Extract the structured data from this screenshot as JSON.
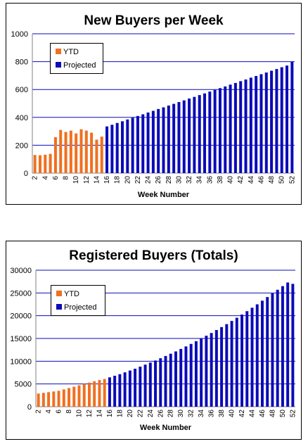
{
  "colors": {
    "ytd": "#F07020",
    "projected": "#0B0BB8",
    "gridline": "#0B0BB8",
    "axis": "#808080"
  },
  "chart_data": [
    {
      "type": "bar",
      "title": "New Buyers per Week",
      "xlabel": "Week Number",
      "ylabel": "",
      "ylim": [
        0,
        1000
      ],
      "yticks": [
        0,
        200,
        400,
        600,
        800,
        1000
      ],
      "categories": [
        2,
        3,
        4,
        5,
        6,
        7,
        8,
        9,
        10,
        11,
        12,
        13,
        14,
        15,
        16,
        17,
        18,
        19,
        20,
        21,
        22,
        23,
        24,
        25,
        26,
        27,
        28,
        29,
        30,
        31,
        32,
        33,
        34,
        35,
        36,
        37,
        38,
        39,
        40,
        41,
        42,
        43,
        44,
        45,
        46,
        47,
        48,
        49,
        50,
        51,
        52
      ],
      "x_tick_labels": [
        2,
        4,
        6,
        8,
        10,
        12,
        14,
        16,
        18,
        20,
        22,
        24,
        26,
        28,
        30,
        32,
        34,
        36,
        38,
        40,
        42,
        44,
        46,
        48,
        50,
        52
      ],
      "legend_position": "top-left",
      "grid": true,
      "series": [
        {
          "name": "YTD",
          "color": "#F07020",
          "x": [
            2,
            3,
            4,
            5,
            6,
            7,
            8,
            9,
            10,
            11,
            12,
            13,
            14,
            15
          ],
          "values": [
            130,
            128,
            132,
            138,
            258,
            310,
            295,
            305,
            285,
            315,
            305,
            290,
            240,
            262
          ]
        },
        {
          "name": "Projected",
          "color": "#0B0BB8",
          "x": [
            16,
            17,
            18,
            19,
            20,
            21,
            22,
            23,
            24,
            25,
            26,
            27,
            28,
            29,
            30,
            31,
            32,
            33,
            34,
            35,
            36,
            37,
            38,
            39,
            40,
            41,
            42,
            43,
            44,
            45,
            46,
            47,
            48,
            49,
            50,
            51,
            52
          ],
          "values": [
            335,
            347,
            360,
            372,
            385,
            397,
            410,
            422,
            435,
            447,
            460,
            472,
            485,
            497,
            510,
            522,
            535,
            547,
            560,
            572,
            585,
            597,
            610,
            622,
            635,
            647,
            660,
            672,
            685,
            697,
            710,
            722,
            735,
            747,
            760,
            772,
            800
          ]
        }
      ]
    },
    {
      "type": "bar",
      "title": "Registered Buyers (Totals)",
      "xlabel": "Week Number",
      "ylabel": "",
      "ylim": [
        0,
        30000
      ],
      "yticks": [
        0,
        5000,
        10000,
        15000,
        20000,
        25000,
        30000
      ],
      "categories": [
        2,
        3,
        4,
        5,
        6,
        7,
        8,
        9,
        10,
        11,
        12,
        13,
        14,
        15,
        16,
        17,
        18,
        19,
        20,
        21,
        22,
        23,
        24,
        25,
        26,
        27,
        28,
        29,
        30,
        31,
        32,
        33,
        34,
        35,
        36,
        37,
        38,
        39,
        40,
        41,
        42,
        43,
        44,
        45,
        46,
        47,
        48,
        49,
        50,
        51,
        52
      ],
      "x_tick_labels": [
        2,
        4,
        6,
        8,
        10,
        12,
        14,
        16,
        18,
        20,
        22,
        24,
        26,
        28,
        30,
        32,
        34,
        36,
        38,
        40,
        42,
        44,
        46,
        48,
        50,
        52
      ],
      "legend_position": "top-left",
      "grid": true,
      "series": [
        {
          "name": "YTD",
          "color": "#F07020",
          "x": [
            2,
            3,
            4,
            5,
            6,
            7,
            8,
            9,
            10,
            11,
            12,
            13,
            14,
            15
          ],
          "values": [
            2900,
            3050,
            3200,
            3350,
            3500,
            3800,
            4100,
            4400,
            4700,
            5000,
            5300,
            5600,
            5850,
            6100
          ]
        },
        {
          "name": "Projected",
          "color": "#0B0BB8",
          "x": [
            16,
            17,
            18,
            19,
            20,
            21,
            22,
            23,
            24,
            25,
            26,
            27,
            28,
            29,
            30,
            31,
            32,
            33,
            34,
            35,
            36,
            37,
            38,
            39,
            40,
            41,
            42,
            43,
            44,
            45,
            46,
            47,
            48,
            49,
            50,
            51,
            52
          ],
          "values": [
            6450,
            6800,
            7150,
            7550,
            7950,
            8350,
            8800,
            9250,
            9700,
            10150,
            10650,
            11150,
            11650,
            12150,
            12700,
            13250,
            13800,
            14400,
            15000,
            15600,
            16200,
            16850,
            17500,
            18150,
            18850,
            19550,
            20250,
            21000,
            21750,
            22500,
            23300,
            24100,
            24900,
            25700,
            26500,
            27300,
            27000
          ]
        }
      ]
    }
  ]
}
